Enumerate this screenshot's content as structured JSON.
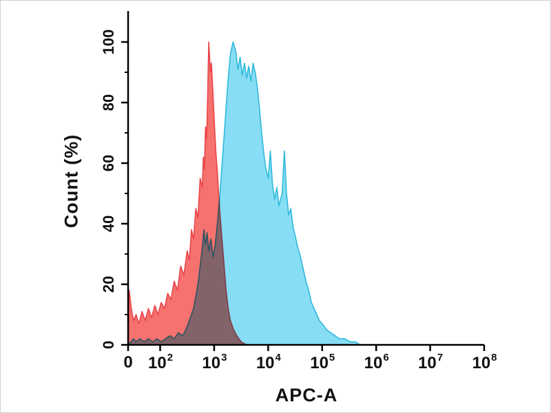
{
  "figure": {
    "xlabel": "APC-A",
    "ylabel": "Count (%)"
  },
  "chart_data": {
    "type": "area",
    "subtype": "flow-cytometry-histogram-overlay",
    "title": "",
    "xlabel": "APC-A",
    "ylabel": "Count (%)",
    "x_scale": "log10, with a compressed '0' segment at the origin",
    "x_axis_min_log": 1.4,
    "x_axis_max_log": 8,
    "ylim": [
      0,
      100
    ],
    "yticks_major": [
      0,
      20,
      40,
      60,
      80,
      100
    ],
    "yticks_minor": [
      10,
      30,
      50,
      70,
      90
    ],
    "xticks": [
      {
        "text": "0",
        "sup": "",
        "log": 1.4
      },
      {
        "text": "10",
        "sup": "2",
        "log": 2
      },
      {
        "text": "10",
        "sup": "3",
        "log": 3
      },
      {
        "text": "10",
        "sup": "4",
        "log": 4
      },
      {
        "text": "10",
        "sup": "5",
        "log": 5
      },
      {
        "text": "10",
        "sup": "6",
        "log": 6
      },
      {
        "text": "10",
        "sup": "7",
        "log": 7
      },
      {
        "text": "10",
        "sup": "8",
        "log": 8
      }
    ],
    "colors": {
      "red_fill": "#F5726E",
      "red_stroke": "#E9454C",
      "blue_fill": "#87DDF3",
      "blue_stroke": "#2FB9DC",
      "overlap_note": "overlap renders gray-purple via multiply blend",
      "axis": "#000000"
    },
    "legend": "none shown",
    "grid": false,
    "series": [
      {
        "name": "red-histogram",
        "peak_log10_x": 2.9,
        "peak_percent": 100,
        "points": [
          [
            1.4,
            0
          ],
          [
            1.42,
            18
          ],
          [
            1.46,
            12
          ],
          [
            1.5,
            8
          ],
          [
            1.55,
            10
          ],
          [
            1.6,
            7
          ],
          [
            1.66,
            11
          ],
          [
            1.72,
            8
          ],
          [
            1.78,
            12
          ],
          [
            1.84,
            9
          ],
          [
            1.9,
            13
          ],
          [
            1.96,
            10
          ],
          [
            2.02,
            14
          ],
          [
            2.08,
            12
          ],
          [
            2.14,
            17
          ],
          [
            2.2,
            15
          ],
          [
            2.26,
            21
          ],
          [
            2.32,
            18
          ],
          [
            2.38,
            26
          ],
          [
            2.44,
            23
          ],
          [
            2.5,
            31
          ],
          [
            2.54,
            28
          ],
          [
            2.58,
            38
          ],
          [
            2.62,
            35
          ],
          [
            2.66,
            45
          ],
          [
            2.7,
            42
          ],
          [
            2.74,
            55
          ],
          [
            2.78,
            52
          ],
          [
            2.8,
            62
          ],
          [
            2.82,
            58
          ],
          [
            2.84,
            72
          ],
          [
            2.86,
            68
          ],
          [
            2.88,
            82
          ],
          [
            2.9,
            100
          ],
          [
            2.93,
            90
          ],
          [
            2.95,
            93
          ],
          [
            2.98,
            82
          ],
          [
            3.0,
            75
          ],
          [
            3.03,
            64
          ],
          [
            3.06,
            57
          ],
          [
            3.1,
            45
          ],
          [
            3.14,
            36
          ],
          [
            3.18,
            27
          ],
          [
            3.22,
            18
          ],
          [
            3.26,
            12
          ],
          [
            3.3,
            8
          ],
          [
            3.36,
            5
          ],
          [
            3.42,
            3
          ],
          [
            3.5,
            1
          ],
          [
            3.6,
            0
          ]
        ]
      },
      {
        "name": "blue-histogram",
        "peak_log10_x": 3.35,
        "peak_percent": 100,
        "points": [
          [
            1.4,
            0
          ],
          [
            1.45,
            1
          ],
          [
            1.5,
            2
          ],
          [
            1.55,
            1
          ],
          [
            1.62,
            2
          ],
          [
            1.7,
            1
          ],
          [
            1.78,
            2
          ],
          [
            1.86,
            1
          ],
          [
            1.94,
            2
          ],
          [
            2.02,
            1
          ],
          [
            2.1,
            2
          ],
          [
            2.18,
            3
          ],
          [
            2.26,
            2
          ],
          [
            2.34,
            4
          ],
          [
            2.42,
            3
          ],
          [
            2.5,
            6
          ],
          [
            2.56,
            9
          ],
          [
            2.62,
            12
          ],
          [
            2.66,
            16
          ],
          [
            2.7,
            20
          ],
          [
            2.74,
            26
          ],
          [
            2.78,
            32
          ],
          [
            2.81,
            38
          ],
          [
            2.84,
            33
          ],
          [
            2.87,
            37
          ],
          [
            2.9,
            31
          ],
          [
            2.94,
            35
          ],
          [
            2.98,
            29
          ],
          [
            3.02,
            33
          ],
          [
            3.06,
            40
          ],
          [
            3.1,
            48
          ],
          [
            3.14,
            58
          ],
          [
            3.18,
            68
          ],
          [
            3.22,
            78
          ],
          [
            3.26,
            88
          ],
          [
            3.3,
            96
          ],
          [
            3.35,
            100
          ],
          [
            3.4,
            97
          ],
          [
            3.44,
            91
          ],
          [
            3.48,
            95
          ],
          [
            3.52,
            89
          ],
          [
            3.56,
            93
          ],
          [
            3.6,
            88
          ],
          [
            3.64,
            92
          ],
          [
            3.68,
            87
          ],
          [
            3.72,
            93
          ],
          [
            3.76,
            90
          ],
          [
            3.8,
            85
          ],
          [
            3.84,
            78
          ],
          [
            3.88,
            70
          ],
          [
            3.92,
            63
          ],
          [
            3.96,
            58
          ],
          [
            4.0,
            55
          ],
          [
            4.04,
            64
          ],
          [
            4.08,
            53
          ],
          [
            4.12,
            48
          ],
          [
            4.16,
            52
          ],
          [
            4.2,
            46
          ],
          [
            4.26,
            50
          ],
          [
            4.3,
            64
          ],
          [
            4.34,
            50
          ],
          [
            4.38,
            43
          ],
          [
            4.42,
            45
          ],
          [
            4.46,
            39
          ],
          [
            4.5,
            36
          ],
          [
            4.55,
            32
          ],
          [
            4.6,
            29
          ],
          [
            4.65,
            25
          ],
          [
            4.7,
            21
          ],
          [
            4.75,
            18
          ],
          [
            4.8,
            14
          ],
          [
            4.85,
            12
          ],
          [
            4.9,
            10
          ],
          [
            4.95,
            8
          ],
          [
            5.0,
            7
          ],
          [
            5.08,
            5
          ],
          [
            5.16,
            4
          ],
          [
            5.24,
            3
          ],
          [
            5.32,
            2
          ],
          [
            5.42,
            2
          ],
          [
            5.52,
            1
          ],
          [
            5.62,
            1
          ],
          [
            5.7,
            0
          ]
        ]
      }
    ]
  }
}
